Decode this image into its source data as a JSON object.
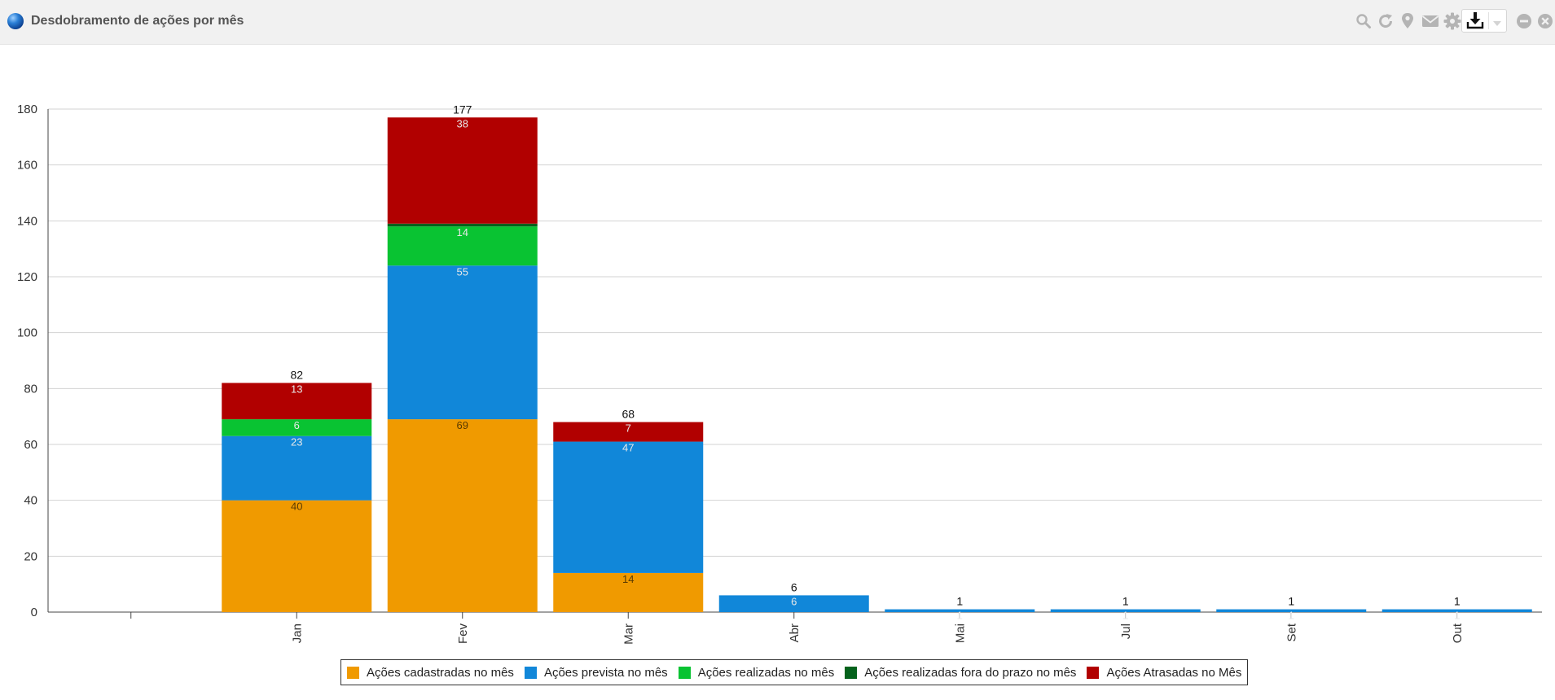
{
  "panel": {
    "title": "Desdobramento de ações por mês",
    "globe_icon": "globe-icon",
    "tools": [
      "search-icon",
      "refresh-icon",
      "map-pin-icon",
      "mail-icon",
      "gear-icon",
      "download-icon",
      "chevron-down-icon",
      "minimize-icon",
      "close-icon"
    ]
  },
  "chart_data": {
    "type": "bar",
    "stacked": true,
    "categories": [
      "",
      "Jan",
      "Fev",
      "Mar",
      "Abr",
      "Mai",
      "Jul",
      "Set",
      "Out"
    ],
    "ylim": [
      0,
      180
    ],
    "yticks": [
      0,
      20,
      40,
      60,
      80,
      100,
      120,
      140,
      160,
      180
    ],
    "grid": true,
    "legend_position": "bottom",
    "series": [
      {
        "name": "Ações cadastradas no mês",
        "color": "#f09a00",
        "values": [
          0,
          40,
          69,
          14,
          0,
          0,
          0,
          0,
          0
        ]
      },
      {
        "name": "Ações prevista no mês",
        "color": "#1187d9",
        "values": [
          0,
          23,
          55,
          47,
          6,
          1,
          1,
          1,
          1
        ]
      },
      {
        "name": "Ações realizadas no mês",
        "color": "#09c332",
        "values": [
          0,
          6,
          14,
          0,
          0,
          0,
          0,
          0,
          0
        ]
      },
      {
        "name": "Ações realizadas fora do prazo no mês",
        "color": "#04621c",
        "values": [
          0,
          0,
          1,
          0,
          0,
          0,
          0,
          0,
          0
        ]
      },
      {
        "name": "Ações Atrasadas no Mês",
        "color": "#b10000",
        "values": [
          0,
          13,
          38,
          7,
          0,
          0,
          0,
          0,
          0
        ]
      }
    ],
    "totals": [
      0,
      82,
      177,
      68,
      6,
      1,
      1,
      1,
      1
    ],
    "show_segment_labels_for": [
      0,
      1,
      2,
      4
    ]
  }
}
